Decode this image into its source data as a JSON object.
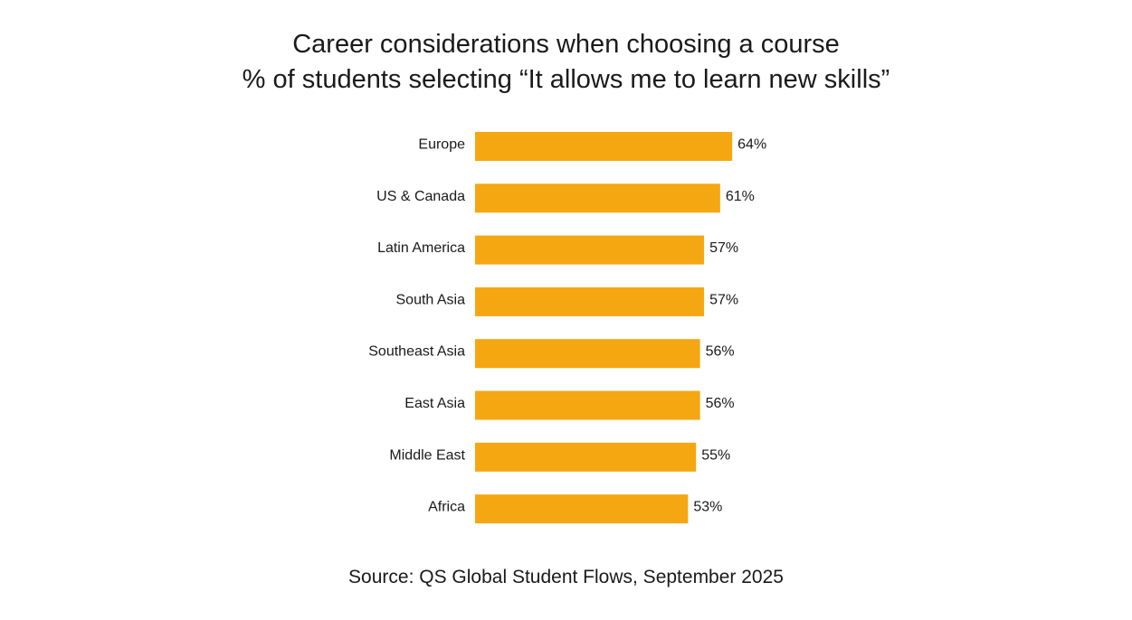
{
  "chart_data": {
    "type": "bar",
    "orientation": "horizontal",
    "title": "Career considerations when choosing a course",
    "subtitle": "% of students selecting “It allows me to learn new skills”",
    "categories": [
      "Europe",
      "US & Canada",
      "Latin America",
      "South Asia",
      "Southeast Asia",
      "East Asia",
      "Middle East",
      "Africa"
    ],
    "values": [
      64,
      61,
      57,
      57,
      56,
      56,
      55,
      53
    ],
    "value_labels": [
      "64%",
      "61%",
      "57%",
      "57%",
      "56%",
      "56%",
      "55%",
      "53%"
    ],
    "bar_color": "#F5A711",
    "grid": false,
    "legend": "none",
    "xlabel": "",
    "ylabel": ""
  },
  "source": "Source: QS Global Student Flows, September 2025"
}
